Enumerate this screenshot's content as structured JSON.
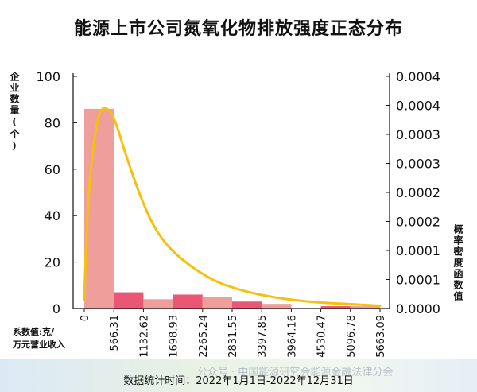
{
  "title": "能源上市公司氮氧化物排放强度正态分布",
  "y_left_label": "企业数量(个)",
  "y_right_label": "概率密度函数值",
  "x_unit_label_line1": "系数值:克/",
  "x_unit_label_line2": "万元营业收入",
  "footnote": "数据统计时间：2022年1月1日-2022年12月31日",
  "watermark": "公众号 · 中国能源研究会能源金融法律分会",
  "chart_data": {
    "type": "bar",
    "title": "能源上市公司氮氧化物排放强度正态分布",
    "x_tick_labels": [
      "0",
      "566.31",
      "1132.62",
      "1698.93",
      "2265.24",
      "2831.55",
      "3397.85",
      "3964.16",
      "4530.47",
      "5096.78",
      "5663.09"
    ],
    "bins": [
      {
        "from": 0,
        "to": 566.31,
        "count": 86,
        "color": "#ee9f9c"
      },
      {
        "from": 566.31,
        "to": 1132.62,
        "count": 7,
        "color": "#e95775"
      },
      {
        "from": 1132.62,
        "to": 1698.93,
        "count": 4,
        "color": "#ee9f9c"
      },
      {
        "from": 1698.93,
        "to": 2265.24,
        "count": 6,
        "color": "#e95775"
      },
      {
        "from": 2265.24,
        "to": 2831.55,
        "count": 5,
        "color": "#ee9f9c"
      },
      {
        "from": 2831.55,
        "to": 3397.85,
        "count": 3,
        "color": "#e95775"
      },
      {
        "from": 3397.85,
        "to": 3964.16,
        "count": 2,
        "color": "#ee9f9c"
      },
      {
        "from": 3964.16,
        "to": 4530.47,
        "count": 0,
        "color": "#e95775"
      },
      {
        "from": 4530.47,
        "to": 5096.78,
        "count": 1,
        "color": "#e95775"
      },
      {
        "from": 5096.78,
        "to": 5663.09,
        "count": 1,
        "color": "#ee9f9c"
      }
    ],
    "y_left": {
      "label": "企业数量(个)",
      "min": 0,
      "max": 100,
      "ticks": [
        "0",
        "20",
        "40",
        "60",
        "80",
        "100"
      ]
    },
    "y_right": {
      "label": "概率密度函数值",
      "ticks": [
        "0.0000",
        "0.0001",
        "0.0001",
        "0.0002",
        "0.0002",
        "0.0003",
        "0.0003",
        "0.0004",
        "0.0004"
      ]
    },
    "density_curve": {
      "color": "#f6c10c",
      "points": [
        {
          "x": 0,
          "y_count": 4
        },
        {
          "x": 60,
          "y_count": 40
        },
        {
          "x": 150,
          "y_count": 65
        },
        {
          "x": 280,
          "y_count": 83
        },
        {
          "x": 430,
          "y_count": 86
        },
        {
          "x": 600,
          "y_count": 80
        },
        {
          "x": 800,
          "y_count": 66
        },
        {
          "x": 1050,
          "y_count": 50
        },
        {
          "x": 1300,
          "y_count": 37
        },
        {
          "x": 1600,
          "y_count": 27
        },
        {
          "x": 2000,
          "y_count": 19
        },
        {
          "x": 2500,
          "y_count": 12
        },
        {
          "x": 3000,
          "y_count": 8
        },
        {
          "x": 3600,
          "y_count": 5
        },
        {
          "x": 4300,
          "y_count": 3
        },
        {
          "x": 5000,
          "y_count": 2
        },
        {
          "x": 5663.09,
          "y_count": 1.2
        }
      ]
    },
    "grid": false
  }
}
